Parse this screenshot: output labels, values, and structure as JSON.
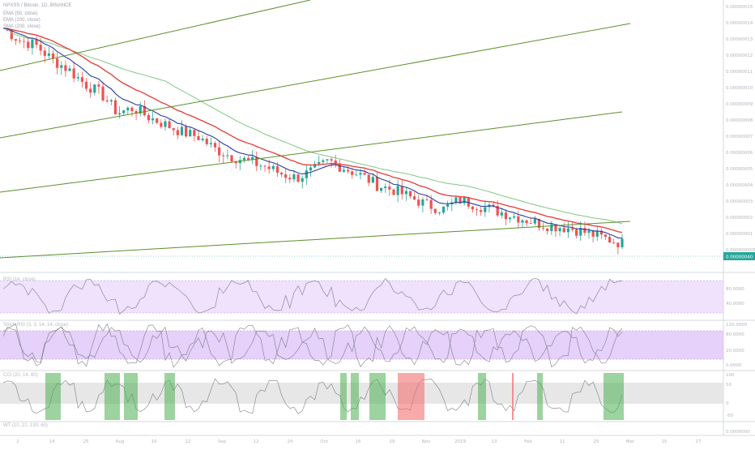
{
  "header": {
    "symbol_line": "NPXSS / Bitcoin, 1D, BINANCE",
    "ind1": "EMA (50, close)",
    "ind2": "EMA (100, close)",
    "ind3": "SMA (200, close)"
  },
  "price_axis": {
    "labels": [
      "0.00000015",
      "0.00000014",
      "0.00000013",
      "0.00000012",
      "0.00000011",
      "0.00000010",
      "0.00000009",
      "0.00000008",
      "0.00000007",
      "0.00000006",
      "0.00000005",
      "0.00000004",
      "0.00000003",
      "0.00000002",
      "0.00000001",
      "0.000000005"
    ],
    "current_price": "0.00000040",
    "current_price_color": "#26a69a"
  },
  "panes": {
    "rsi_label": "RSI (14, close)",
    "rsi_ticks": [
      "80.0000",
      "40.0000"
    ],
    "stoch_label": "Stoch RSI (3, 3, 14, 14, close)",
    "stoch_ticks": [
      "120.0000",
      "80.0000",
      "20.0000",
      "0.0000"
    ],
    "cci_label": "CCI (20, 14, 80)",
    "cci_ticks": [
      "100",
      "50",
      "0",
      "-50"
    ],
    "bottom_label": "WT (10, 21, 130, 60)",
    "bottom_ticks": [
      "0.0000000"
    ]
  },
  "time_axis": [
    "2",
    "14",
    "25",
    "Aug",
    "10",
    "22",
    "Sep",
    "12",
    "24",
    "Oct",
    "16",
    "29",
    "Nov",
    "2019",
    "13",
    "Feb",
    "11",
    "25",
    "Mar",
    "15",
    "27"
  ],
  "colors": {
    "up": "#26a69a",
    "down": "#ef5350",
    "ema50": "#2a3e9e",
    "ema100": "#e53935",
    "sma200": "#81c784",
    "trendline": "#5b8f2a",
    "band": "#e6cdfa",
    "cci_band": "#e4e4e4",
    "green_highlight": "#4caf50",
    "red_highlight": "#f47171"
  },
  "chart_data": {
    "type": "candlestick",
    "title": "NPXSS / Bitcoin, 1D, BINANCE",
    "overlays": [
      "EMA 50",
      "EMA 100",
      "SMA 200",
      "trend lines"
    ],
    "price_range": [
      5e-09,
      1.5e-07
    ],
    "current_price": "0.00000040",
    "close_series": [
      0.95,
      0.9,
      0.88,
      0.82,
      0.78,
      0.72,
      0.68,
      0.6,
      0.62,
      0.58,
      0.55,
      0.52,
      0.5,
      0.45,
      0.42,
      0.4,
      0.38,
      0.35,
      0.33,
      0.36,
      0.4,
      0.37,
      0.34,
      0.3,
      0.28,
      0.25,
      0.22,
      0.2,
      0.24,
      0.22,
      0.2,
      0.18,
      0.16,
      0.14,
      0.13,
      0.12,
      0.1,
      0.08,
      0.06
    ],
    "indicators": [
      "RSI (14)",
      "Stoch RSI",
      "CCI",
      "WT"
    ]
  }
}
